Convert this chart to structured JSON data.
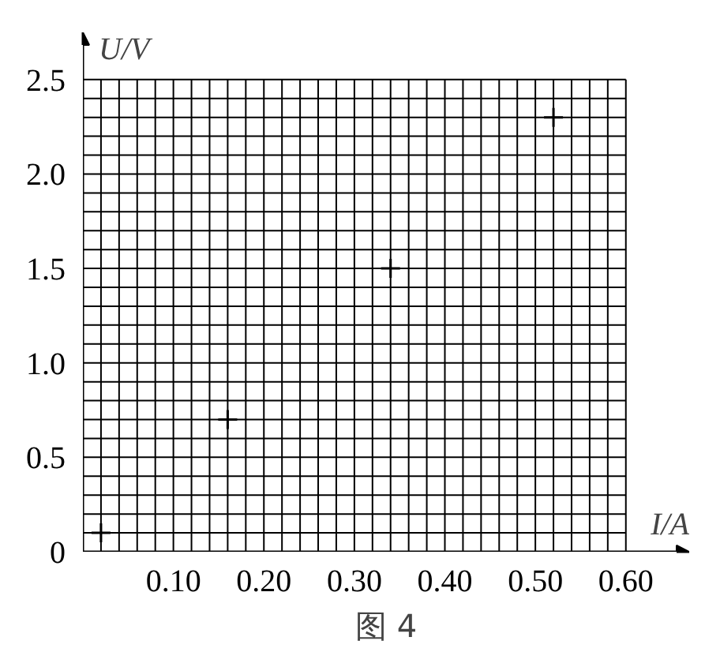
{
  "chart_data": {
    "type": "scatter",
    "title": "图 4",
    "xlabel": "I/A",
    "ylabel": "U/V",
    "x": [
      0.02,
      0.16,
      0.34,
      0.52
    ],
    "series": [
      {
        "color": "#000000",
        "values": [
          0.1,
          0.7,
          1.5,
          2.3
        ]
      }
    ],
    "marker": "cross",
    "grid": true,
    "xlim": [
      0,
      0.67
    ],
    "ylim": [
      0,
      2.75
    ],
    "xticks": [
      {
        "value": 0,
        "label": null
      },
      {
        "value": 0.02,
        "label": null
      },
      {
        "value": 0.04,
        "label": null
      },
      {
        "value": 0.06,
        "label": null
      },
      {
        "value": 0.08,
        "label": null
      },
      {
        "value": 0.1,
        "label": "0.10"
      },
      {
        "value": 0.12,
        "label": null
      },
      {
        "value": 0.14,
        "label": null
      },
      {
        "value": 0.16,
        "label": null
      },
      {
        "value": 0.18,
        "label": null
      },
      {
        "value": 0.2,
        "label": "0.20"
      },
      {
        "value": 0.22,
        "label": null
      },
      {
        "value": 0.24,
        "label": null
      },
      {
        "value": 0.26,
        "label": null
      },
      {
        "value": 0.28,
        "label": null
      },
      {
        "value": 0.3,
        "label": "0.30"
      },
      {
        "value": 0.32,
        "label": null
      },
      {
        "value": 0.34,
        "label": null
      },
      {
        "value": 0.36,
        "label": null
      },
      {
        "value": 0.38,
        "label": null
      },
      {
        "value": 0.4,
        "label": "0.40"
      },
      {
        "value": 0.42,
        "label": null
      },
      {
        "value": 0.44,
        "label": null
      },
      {
        "value": 0.46,
        "label": null
      },
      {
        "value": 0.48,
        "label": null
      },
      {
        "value": 0.5,
        "label": "0.50"
      },
      {
        "value": 0.52,
        "label": null
      },
      {
        "value": 0.54,
        "label": null
      },
      {
        "value": 0.56,
        "label": null
      },
      {
        "value": 0.58,
        "label": null
      },
      {
        "value": 0.6,
        "label": "0.60"
      }
    ],
    "yticks": [
      0,
      {
        "value": 0.1,
        "label": null
      },
      {
        "value": 0.2,
        "label": null
      },
      {
        "value": 0.3,
        "label": null
      },
      {
        "value": 0.4,
        "label": null
      },
      0.5,
      {
        "value": 0.6,
        "label": null
      },
      {
        "value": 0.7,
        "label": null
      },
      {
        "value": 0.8,
        "label": null
      },
      {
        "value": 0.9,
        "label": null
      },
      {
        "value": 1,
        "label": "1.0"
      },
      {
        "value": 1.1,
        "label": null
      },
      {
        "value": 1.2,
        "label": null
      },
      {
        "value": 1.3,
        "label": null
      },
      {
        "value": 1.4,
        "label": null
      },
      1.5,
      {
        "value": 1.6,
        "label": null
      },
      {
        "value": 1.7,
        "label": null
      },
      {
        "value": 1.8,
        "label": null
      },
      {
        "value": 1.9,
        "label": null
      },
      {
        "value": 2,
        "label": "2.0"
      },
      {
        "value": 2.1,
        "label": null
      },
      {
        "value": 2.2,
        "label": null
      },
      {
        "value": 2.3,
        "label": null
      },
      {
        "value": 2.4,
        "label": null
      },
      2.5
    ]
  }
}
